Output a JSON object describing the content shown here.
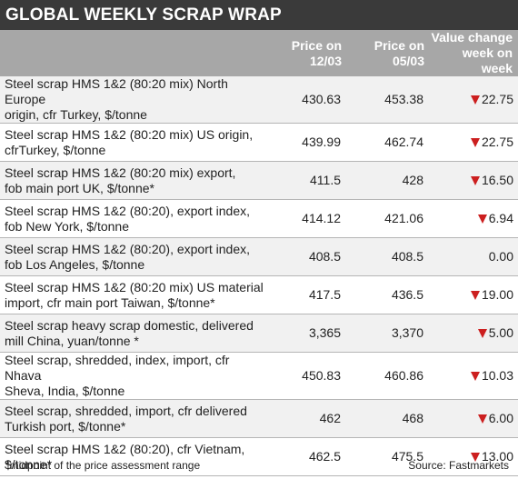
{
  "title": "GLOBAL WEEKLY SCRAP WRAP",
  "headers": {
    "price1": [
      "Price on",
      "12/03"
    ],
    "price2": [
      "Price on",
      "05/03"
    ],
    "change": [
      "Value change",
      "week on week"
    ]
  },
  "rows": [
    {
      "desc": [
        "Steel scrap HMS 1&2 (80:20 mix) North Europe",
        "origin, cfr Turkey, $/tonne"
      ],
      "p1": "430.63",
      "p2": "453.38",
      "change": "22.75",
      "down": true
    },
    {
      "desc": [
        "Steel scrap HMS 1&2 (80:20 mix) US origin,",
        "cfrTurkey, $/tonne"
      ],
      "p1": "439.99",
      "p2": "462.74",
      "change": "22.75",
      "down": true
    },
    {
      "desc": [
        "Steel scrap HMS 1&2 (80:20 mix) export,",
        "fob main port UK, $/tonne*"
      ],
      "p1": "411.5",
      "p2": "428",
      "change": "16.50",
      "down": true
    },
    {
      "desc": [
        "Steel scrap HMS 1&2 (80:20), export index,",
        "fob New York, $/tonne"
      ],
      "p1": "414.12",
      "p2": "421.06",
      "change": "6.94",
      "down": true
    },
    {
      "desc": [
        "Steel scrap HMS 1&2 (80:20), export index,",
        "fob Los Angeles, $/tonne"
      ],
      "p1": "408.5",
      "p2": "408.5",
      "change": "0.00",
      "down": false
    },
    {
      "desc": [
        "Steel scrap HMS 1&2 (80:20 mix) US material",
        "import, cfr main port Taiwan, $/tonne*"
      ],
      "p1": "417.5",
      "p2": "436.5",
      "change": "19.00",
      "down": true
    },
    {
      "desc": [
        "Steel scrap heavy scrap domestic, delivered",
        "mill China, yuan/tonne *"
      ],
      "p1": "3,365",
      "p2": "3,370",
      "change": "5.00",
      "down": true
    },
    {
      "desc": [
        "Steel scrap, shredded, index, import, cfr Nhava",
        "Sheva, India, $/tonne"
      ],
      "p1": "450.83",
      "p2": "460.86",
      "change": "10.03",
      "down": true
    },
    {
      "desc": [
        "Steel scrap, shredded, import, cfr delivered",
        "Turkish port, $/tonne*"
      ],
      "p1": "462",
      "p2": "468",
      "change": "6.00",
      "down": true
    },
    {
      "desc": [
        "Steel scrap HMS 1&2 (80:20), cfr Vietnam,",
        "$/tonne*"
      ],
      "p1": "462.5",
      "p2": "475.5",
      "change": "13.00",
      "down": true
    }
  ],
  "footnote": "*midpoint of the price assessment range",
  "source": "Source: Fastmarkets",
  "colors": {
    "title_bg": "#3a3a3a",
    "header_bg": "#a7a7a7",
    "down_arrow": "#cc1f1f"
  }
}
